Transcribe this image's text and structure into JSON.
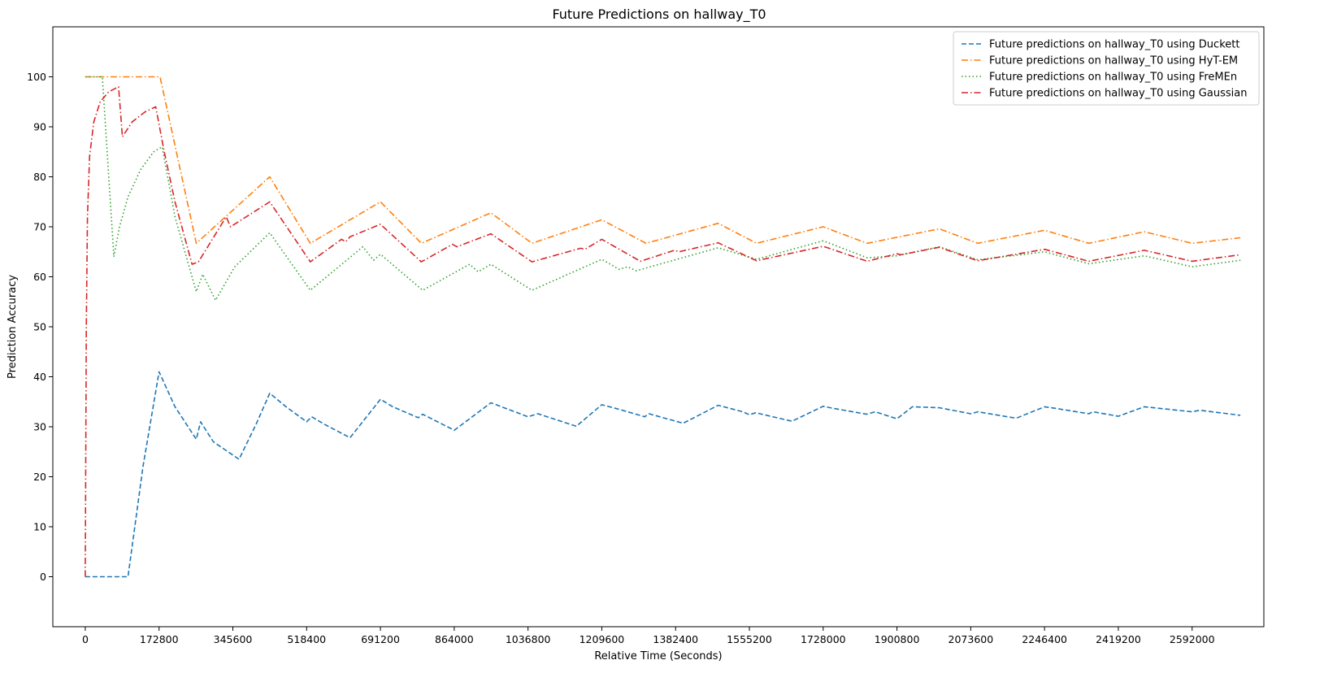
{
  "chart_data": {
    "type": "line",
    "title": "Future Predictions on hallway_T0",
    "xlabel": "Relative Time (Seconds)",
    "ylabel": "Prediction Accuracy",
    "xlim": [
      -76000,
      2760000
    ],
    "ylim": [
      -10,
      110
    ],
    "xticks": [
      0,
      172800,
      345600,
      518400,
      691200,
      864000,
      1036800,
      1209600,
      1382400,
      1555200,
      1728000,
      1900800,
      2073600,
      2246400,
      2419200,
      2592000
    ],
    "yticks": [
      0,
      10,
      20,
      30,
      40,
      50,
      60,
      70,
      80,
      90,
      100
    ],
    "grid": false,
    "legend_position": "top-right",
    "series": [
      {
        "name": "Future predictions on hallway_T0 using Duckett",
        "color": "#1f77b4",
        "style": "dashed",
        "x": [
          0,
          100000,
          135000,
          172800,
          210000,
          260000,
          270000,
          300000,
          360000,
          400000,
          432000,
          470000,
          518400,
          530000,
          560000,
          620000,
          691200,
          720000,
          780000,
          790000,
          864000,
          950000,
          1036800,
          1060000,
          1150000,
          1209600,
          1250000,
          1310000,
          1320000,
          1400000,
          1482000,
          1540000,
          1555200,
          1570000,
          1655000,
          1728000,
          1750000,
          1830000,
          1850000,
          1900800,
          1937000,
          2000000,
          2073600,
          2090000,
          2180000,
          2246400,
          2270000,
          2350000,
          2360000,
          2419200,
          2480000,
          2592000,
          2610000,
          2705000
        ],
        "y": [
          0,
          0,
          22,
          41,
          34,
          27.5,
          31,
          27,
          23.5,
          30.5,
          36.7,
          34,
          31,
          32,
          30.5,
          27.8,
          35.5,
          34,
          31.8,
          32.5,
          29.3,
          34.8,
          32,
          32.6,
          30.1,
          34.4,
          33.5,
          32,
          32.6,
          30.7,
          34.3,
          33,
          32.4,
          32.8,
          31.1,
          34.1,
          33.7,
          32.5,
          33,
          31.6,
          34,
          33.8,
          32.6,
          33,
          31.7,
          34,
          33.7,
          32.6,
          33,
          32.1,
          34,
          33,
          33.3,
          32.3
        ]
      },
      {
        "name": "Future predictions on hallway_T0 using HyT-EM",
        "color": "#ff7f0e",
        "style": "dashdot",
        "x": [
          0,
          175000,
          260000,
          432000,
          527000,
          691200,
          787000,
          950000,
          1046000,
          1209600,
          1313000,
          1482000,
          1572000,
          1728000,
          1831000,
          2000000,
          2090000,
          2246400,
          2350000,
          2480000,
          2592000,
          2705000
        ],
        "y": [
          100,
          100,
          66.7,
          80,
          66.7,
          75,
          66.7,
          72.8,
          66.7,
          71.4,
          66.7,
          70.7,
          66.7,
          70,
          66.7,
          69.6,
          66.7,
          69.3,
          66.7,
          69,
          66.7,
          67.8
        ]
      },
      {
        "name": "Future predictions on hallway_T0 using FreMEn",
        "color": "#2ca02c",
        "style": "dotted",
        "x": [
          0,
          40000,
          67000,
          80000,
          100000,
          130000,
          160000,
          180000,
          210000,
          260000,
          275000,
          305000,
          350000,
          432000,
          527000,
          650000,
          675000,
          691200,
          790000,
          900000,
          920000,
          950000,
          1046000,
          1209600,
          1250000,
          1270000,
          1290000,
          1482000,
          1572000,
          1728000,
          1831000,
          1900800,
          2000000,
          2090000,
          2200000,
          2246400,
          2350000,
          2480000,
          2592000,
          2705000
        ],
        "y": [
          100,
          100,
          64,
          70,
          76,
          81.5,
          85,
          86,
          72,
          57,
          60.5,
          55.3,
          62,
          68.8,
          57.3,
          66,
          63.3,
          64.5,
          57.3,
          62.5,
          61,
          62.5,
          57.3,
          63.5,
          61.5,
          62,
          61.2,
          65.8,
          63.5,
          67.2,
          63.8,
          64.2,
          66,
          63.4,
          64.5,
          65,
          62.6,
          64.2,
          62,
          63.3
        ]
      },
      {
        "name": "Future predictions on hallway_T0 using Gaussian",
        "color": "#d62728",
        "style": "dashdot",
        "x": [
          0,
          2500,
          5000,
          10000,
          20000,
          35000,
          55000,
          78000,
          87000,
          110000,
          140000,
          165000,
          185000,
          210000,
          250000,
          265000,
          330000,
          340000,
          432000,
          527000,
          600000,
          610000,
          620000,
          691200,
          787000,
          860000,
          870000,
          950000,
          1046000,
          1160000,
          1170000,
          1209600,
          1300000,
          1380000,
          1390000,
          1482000,
          1572000,
          1728000,
          1831000,
          1900800,
          1910000,
          2000000,
          2090000,
          2246400,
          2350000,
          2480000,
          2592000,
          2705000
        ],
        "y": [
          0,
          50,
          72,
          84,
          91,
          95,
          97,
          98,
          88,
          91,
          93,
          94,
          85,
          75,
          62.5,
          63,
          72,
          70,
          75,
          63,
          67.5,
          67,
          68,
          70.5,
          63,
          66.5,
          66,
          68.6,
          63,
          65.7,
          65.5,
          67.5,
          63.1,
          65.3,
          65,
          66.8,
          63.2,
          66.1,
          63.1,
          64.6,
          64.4,
          65.9,
          63.2,
          65.5,
          63.1,
          65.3,
          63.1,
          64.4
        ]
      }
    ]
  }
}
